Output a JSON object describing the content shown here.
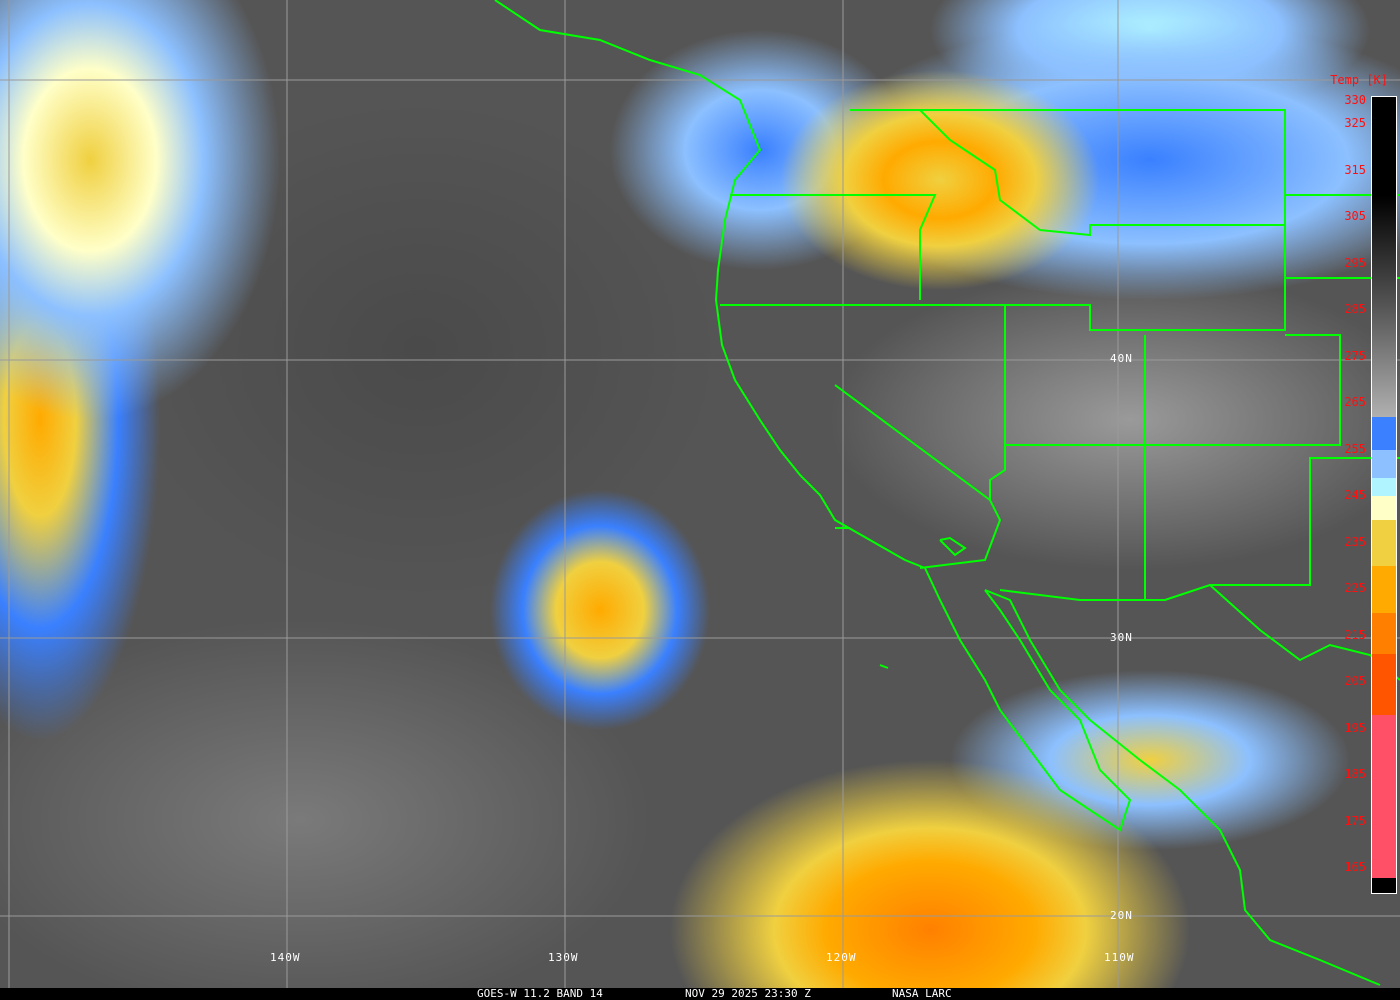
{
  "caption": {
    "satellite": "GOES-W 11.2 BAND 14",
    "datetime": "NOV 29 2025 23:30 Z",
    "source": "NASA LARC"
  },
  "latitude_labels": [
    "40N",
    "30N",
    "20N"
  ],
  "longitude_labels": [
    "140W",
    "130W",
    "120W",
    "110W"
  ],
  "colorbar": {
    "title": "Temp [K]",
    "ticks": [
      "330",
      "325",
      "315",
      "305",
      "295",
      "285",
      "275",
      "265",
      "255",
      "245",
      "235",
      "225",
      "215",
      "205",
      "195",
      "185",
      "175",
      "165"
    ],
    "segments": [
      {
        "from": 330,
        "to": 262,
        "color": "gradient black→gray"
      },
      {
        "from": 262,
        "to": 255,
        "color": "#3a80ff"
      },
      {
        "from": 255,
        "to": 249,
        "color": "#8cc0ff"
      },
      {
        "from": 249,
        "to": 245,
        "color": "#b0f4ff"
      },
      {
        "from": 245,
        "to": 240,
        "color": "#ffffc8"
      },
      {
        "from": 240,
        "to": 230,
        "color": "#f0d040"
      },
      {
        "from": 230,
        "to": 220,
        "color": "#ffaa00"
      },
      {
        "from": 220,
        "to": 211,
        "color": "#ff8000"
      },
      {
        "from": 211,
        "to": 198,
        "color": "#ff5500"
      },
      {
        "from": 198,
        "to": 163,
        "color": "#ff5068"
      }
    ]
  },
  "colors": {
    "borders": "#00ff00",
    "grid": "#9a9a9a",
    "tick_labels": "#ff1010"
  }
}
